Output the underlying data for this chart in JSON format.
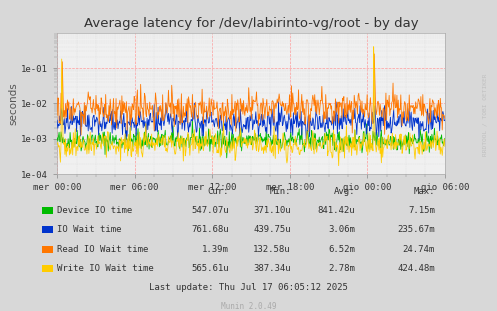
{
  "title": "Average latency for /dev/labirinto-vg/root - by day",
  "ylabel": "seconds",
  "xlabel_ticks": [
    "mer 00:00",
    "mer 06:00",
    "mer 12:00",
    "mer 18:00",
    "gio 00:00",
    "gio 06:00"
  ],
  "right_label": "RRDTOOL / TOBI OETIKER",
  "ylim_min": 0.0001,
  "ylim_max": 1.0,
  "background_color": "#d8d8d8",
  "plot_bg_color": "#f0f0f0",
  "major_grid_color": "#ff9999",
  "minor_grid_color": "#dddddd",
  "series": [
    {
      "name": "Device IO time",
      "color": "#00bb00",
      "linewidth": 0.6
    },
    {
      "name": "IO Wait time",
      "color": "#0033cc",
      "linewidth": 0.6
    },
    {
      "name": "Read IO Wait time",
      "color": "#ff7700",
      "linewidth": 0.6
    },
    {
      "name": "Write IO Wait time",
      "color": "#ffcc00",
      "linewidth": 0.6
    }
  ],
  "legend_headers": [
    "Cur:",
    "Min:",
    "Avg:",
    "Max:"
  ],
  "legend_data": [
    [
      "547.07u",
      "371.10u",
      "841.42u",
      "7.15m"
    ],
    [
      "761.68u",
      "439.75u",
      "3.06m",
      "235.67m"
    ],
    [
      "1.39m",
      "132.58u",
      "6.52m",
      "24.74m"
    ],
    [
      "565.61u",
      "387.34u",
      "2.78m",
      "424.48m"
    ]
  ],
  "last_update": "Last update: Thu Jul 17 06:05:12 2025",
  "munin_version": "Munin 2.0.49",
  "num_points": 600,
  "seed": 42
}
